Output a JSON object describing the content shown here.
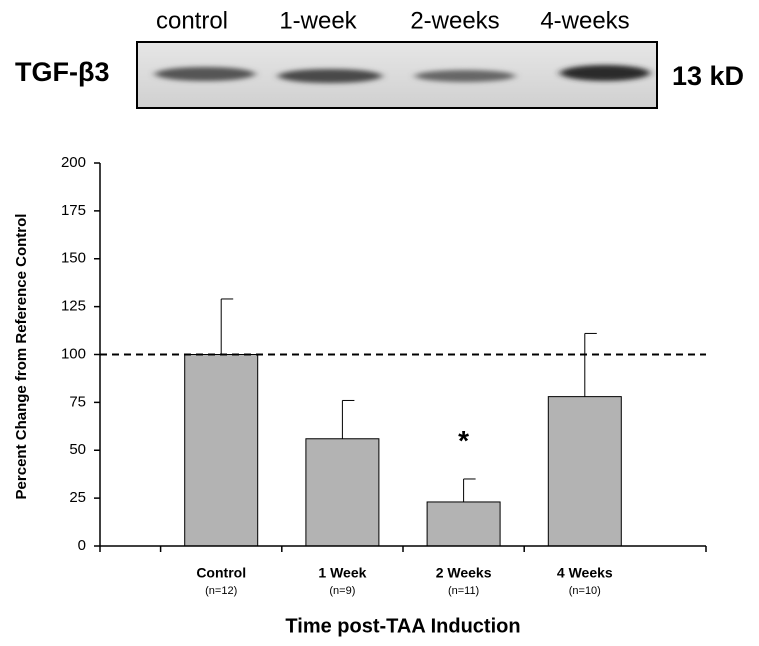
{
  "blot": {
    "protein": "TGF-β3",
    "lanes": [
      "control",
      "1-week",
      "2-weeks",
      "4-weeks"
    ],
    "size": "13 kD"
  },
  "chart_data": {
    "type": "bar",
    "ylabel": "Percent Change from Reference Control",
    "xlabel": "Time post-TAA Induction",
    "categories": [
      "Control",
      "1 Week",
      "2 Weeks",
      "4 Weeks"
    ],
    "sample_sizes": [
      "(n=12)",
      "(n=9)",
      "(n=11)",
      "(n=10)"
    ],
    "values": [
      100,
      56,
      23,
      78
    ],
    "errors": [
      29,
      20,
      12,
      33
    ],
    "color": "#b3b3b3",
    "ylim": [
      0,
      200
    ],
    "yticks": [
      0,
      25,
      50,
      75,
      100,
      125,
      150,
      175,
      200
    ],
    "reference_line": 100,
    "annotations": [
      {
        "text": "*",
        "x": "2 Weeks",
        "y": 57
      }
    ]
  }
}
